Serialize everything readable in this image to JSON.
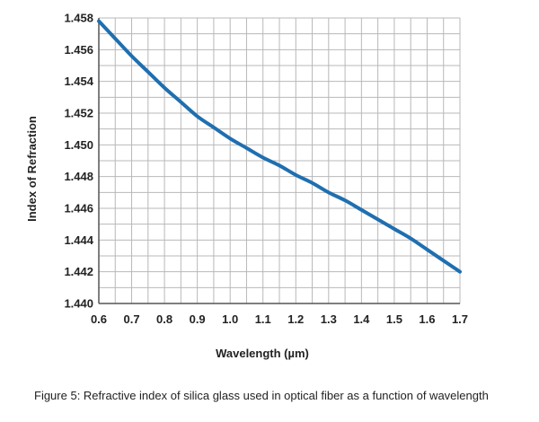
{
  "chart_data": {
    "type": "line",
    "xlabel": "Wavelength (µm)",
    "ylabel": "Index of Refraction",
    "xlim": [
      0.6,
      1.7
    ],
    "ylim": [
      1.44,
      1.458
    ],
    "x_ticks": [
      "0.6",
      "0.7",
      "0.8",
      "0.9",
      "1.0",
      "1.1",
      "1.2",
      "1.3",
      "1.4",
      "1.5",
      "1.6",
      "1.7"
    ],
    "y_ticks": [
      "1.440",
      "1.442",
      "1.444",
      "1.446",
      "1.448",
      "1.450",
      "1.452",
      "1.454",
      "1.456",
      "1.458"
    ],
    "grid": true,
    "series": [
      {
        "x": [
          0.6,
          0.65,
          0.7,
          0.75,
          0.8,
          0.85,
          0.9,
          0.95,
          1.0,
          1.05,
          1.1,
          1.15,
          1.2,
          1.25,
          1.3,
          1.35,
          1.4,
          1.45,
          1.5,
          1.55,
          1.6,
          1.65,
          1.7
        ],
        "y": [
          1.4578,
          1.4567,
          1.4556,
          1.4546,
          1.4536,
          1.4527,
          1.4518,
          1.4511,
          1.4504,
          1.4498,
          1.4492,
          1.4487,
          1.4481,
          1.4476,
          1.447,
          1.4465,
          1.4459,
          1.4453,
          1.4447,
          1.4441,
          1.4434,
          1.4427,
          1.442
        ]
      }
    ],
    "line_color": "#1f6fb0",
    "grid_color": "#b8b8b8"
  },
  "caption": "Figure 5: Refractive index of silica glass used in optical fiber as a function of wavelength"
}
